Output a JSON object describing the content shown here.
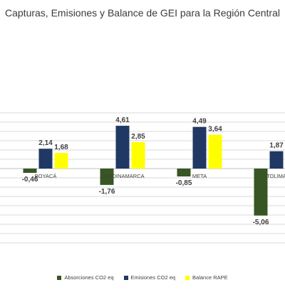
{
  "chart_data": {
    "type": "bar",
    "title": "Capturas, Emisiones y Balance de GEI para la Región Central",
    "categories": [
      "BOYACÁ",
      "CUNDINAMARCA",
      "META",
      "TOLIMA"
    ],
    "series": [
      {
        "name": "Absorciones CO2 eq",
        "color": "#375623",
        "values": [
          -0.46,
          -1.76,
          -0.85,
          -5.06
        ],
        "labels": [
          "-0,46",
          "-1,76",
          "-0,85",
          "-5,06"
        ]
      },
      {
        "name": "Emisiones CO2 eq",
        "color": "#203864",
        "values": [
          2.14,
          4.61,
          4.49,
          1.87
        ],
        "labels": [
          "2,14",
          "4,61",
          "4,49",
          "1,87"
        ]
      },
      {
        "name": "Balance RAPE",
        "color": "#ffff00",
        "values": [
          1.68,
          2.85,
          3.64,
          null
        ],
        "labels": [
          "1,68",
          "2,85",
          "3,64",
          ""
        ]
      }
    ],
    "ylim": [
      -8,
      6
    ],
    "grid": true,
    "legend_position": "bottom"
  }
}
